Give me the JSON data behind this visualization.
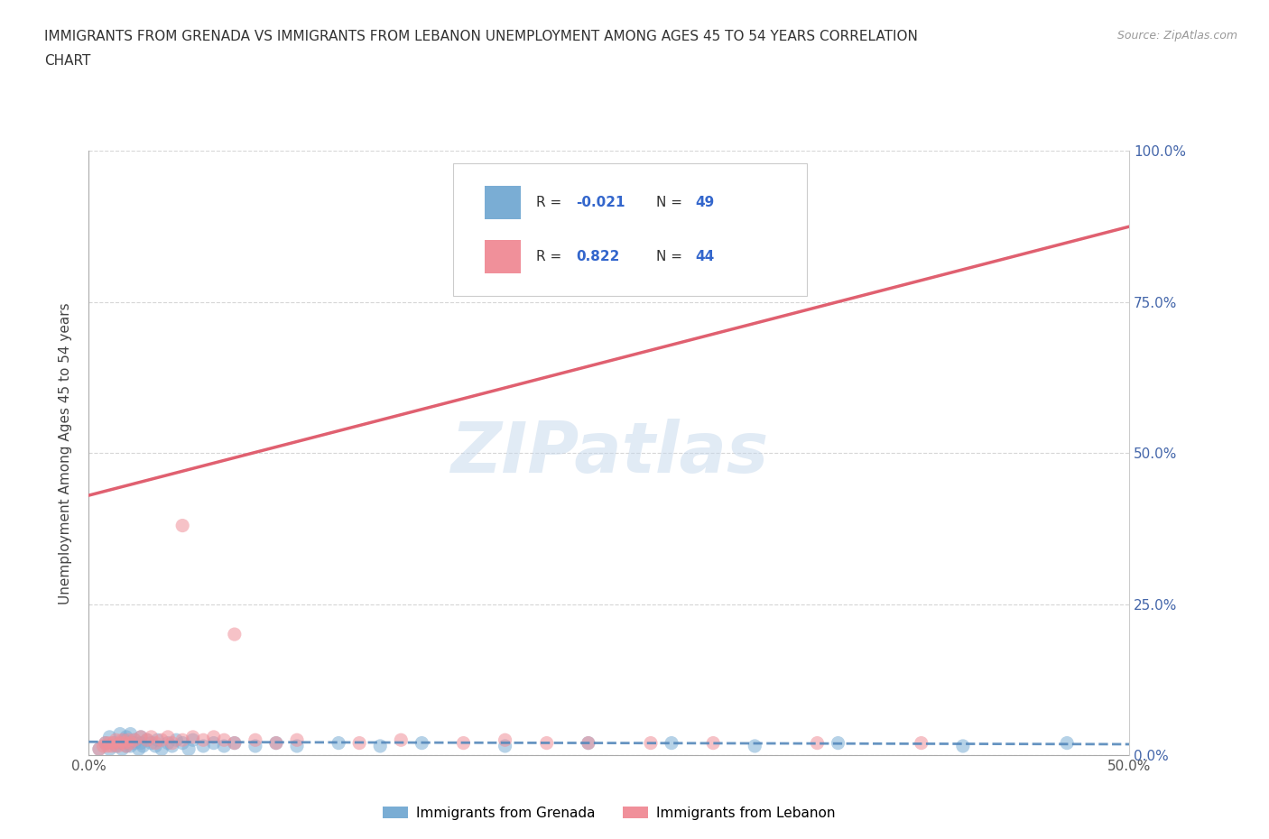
{
  "title_line1": "IMMIGRANTS FROM GRENADA VS IMMIGRANTS FROM LEBANON UNEMPLOYMENT AMONG AGES 45 TO 54 YEARS CORRELATION",
  "title_line2": "CHART",
  "source_text": "Source: ZipAtlas.com",
  "ylabel": "Unemployment Among Ages 45 to 54 years",
  "watermark": "ZIPatlas",
  "xlim": [
    0.0,
    0.5
  ],
  "ylim": [
    0.0,
    1.0
  ],
  "grenada_R": -0.021,
  "grenada_N": 49,
  "lebanon_R": 0.822,
  "lebanon_N": 44,
  "grenada_color": "#7aadd4",
  "lebanon_color": "#f0909a",
  "grenada_line_color": "#5588bb",
  "lebanon_line_color": "#e06070",
  "legend_label_grenada": "Immigrants from Grenada",
  "legend_label_lebanon": "Immigrants from Lebanon",
  "grenada_scatter_x": [
    0.005,
    0.008,
    0.01,
    0.01,
    0.012,
    0.013,
    0.015,
    0.015,
    0.016,
    0.017,
    0.018,
    0.018,
    0.019,
    0.02,
    0.02,
    0.022,
    0.022,
    0.024,
    0.025,
    0.025,
    0.026,
    0.028,
    0.03,
    0.032,
    0.033,
    0.035,
    0.038,
    0.04,
    0.042,
    0.045,
    0.048,
    0.05,
    0.055,
    0.06,
    0.065,
    0.07,
    0.08,
    0.09,
    0.1,
    0.12,
    0.14,
    0.16,
    0.2,
    0.24,
    0.28,
    0.32,
    0.36,
    0.42,
    0.47
  ],
  "grenada_scatter_y": [
    0.01,
    0.02,
    0.01,
    0.03,
    0.02,
    0.015,
    0.02,
    0.035,
    0.01,
    0.025,
    0.015,
    0.03,
    0.02,
    0.015,
    0.035,
    0.02,
    0.025,
    0.01,
    0.02,
    0.03,
    0.015,
    0.025,
    0.02,
    0.015,
    0.025,
    0.01,
    0.02,
    0.015,
    0.025,
    0.02,
    0.01,
    0.025,
    0.015,
    0.02,
    0.015,
    0.02,
    0.015,
    0.02,
    0.015,
    0.02,
    0.015,
    0.02,
    0.015,
    0.02,
    0.02,
    0.015,
    0.02,
    0.015,
    0.02
  ],
  "lebanon_scatter_x": [
    0.005,
    0.007,
    0.008,
    0.009,
    0.01,
    0.011,
    0.012,
    0.013,
    0.014,
    0.015,
    0.016,
    0.017,
    0.018,
    0.019,
    0.02,
    0.022,
    0.025,
    0.028,
    0.03,
    0.032,
    0.035,
    0.038,
    0.04,
    0.045,
    0.05,
    0.055,
    0.06,
    0.065,
    0.07,
    0.08,
    0.09,
    0.1,
    0.13,
    0.15,
    0.18,
    0.2,
    0.22,
    0.24,
    0.27,
    0.3,
    0.35,
    0.4,
    0.045,
    0.07
  ],
  "lebanon_scatter_y": [
    0.01,
    0.015,
    0.02,
    0.015,
    0.02,
    0.015,
    0.02,
    0.025,
    0.015,
    0.02,
    0.025,
    0.02,
    0.015,
    0.025,
    0.02,
    0.025,
    0.03,
    0.025,
    0.03,
    0.02,
    0.025,
    0.03,
    0.02,
    0.025,
    0.03,
    0.025,
    0.03,
    0.025,
    0.02,
    0.025,
    0.02,
    0.025,
    0.02,
    0.025,
    0.02,
    0.025,
    0.02,
    0.02,
    0.02,
    0.02,
    0.02,
    0.02,
    0.38,
    0.2
  ],
  "grenada_line_x": [
    0.0,
    0.5
  ],
  "grenada_line_y": [
    0.022,
    0.018
  ],
  "lebanon_line_x": [
    0.0,
    0.5
  ],
  "lebanon_line_y": [
    0.43,
    0.875
  ]
}
